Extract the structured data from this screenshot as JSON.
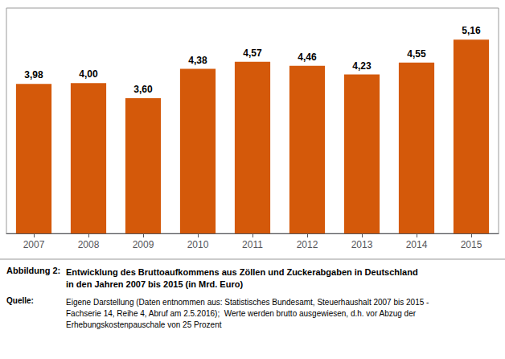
{
  "chart_data": {
    "type": "bar",
    "title": "Entwicklung des Bruttoaufkommens aus Zöllen und Zuckerabgaben in Deutschland\nin den Jahren 2007 bis 2015 (in Mrd. Euro)",
    "subtitle": "Eigene Darstellung (Daten entnommen aus: Statistisches Bundesamt, Steuerhaushalt 2007 bis 2015 -\nFachserie 14, Reihe 4, Abruf am 2.5.2016);  Werte werden brutto ausgewiesen, d.h. vor Abzug der\nErhebungskostenpauschale von 25 Prozent",
    "annotations": [
      "Abbildung 2:",
      "Quelle:"
    ],
    "categories": [
      "2007",
      "2008",
      "2009",
      "2010",
      "2011",
      "2012",
      "2013",
      "2014",
      "2015"
    ],
    "values": [
      3.98,
      4.0,
      3.6,
      4.38,
      4.57,
      4.46,
      4.23,
      4.55,
      5.16
    ],
    "value_labels": [
      "3,98",
      "4,00",
      "3,60",
      "4,38",
      "4,57",
      "4,46",
      "4,23",
      "4,55",
      "5,16"
    ],
    "data_labels": true,
    "color": "#D4590A",
    "ylim": [
      0,
      6.0
    ],
    "tick_labels": "x",
    "grid": false
  }
}
